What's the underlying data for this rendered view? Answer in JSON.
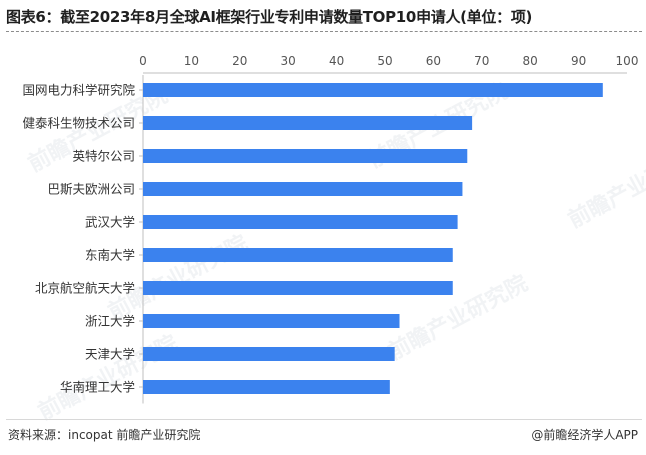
{
  "title": "图表6：截至2023年8月全球AI框架行业专利申请数量TOP10申请人(单位：项)",
  "source": "资料来源：incopat 前瞻产业研究院",
  "credit": "@前瞻经济学人APP",
  "watermark": "前瞻产业研究院",
  "colors": {
    "bar": "#3b82ee",
    "text": "#333333",
    "axis": "#555555"
  },
  "chart_data": {
    "type": "bar",
    "orientation": "horizontal",
    "title": "图表6：截至2023年8月全球AI框架行业专利申请数量TOP10申请人(单位：项)",
    "categories": [
      "国网电力科学研究院",
      "健泰科生物技术公司",
      "英特尔公司",
      "巴斯夫欧洲公司",
      "武汉大学",
      "东南大学",
      "北京航空航天大学",
      "浙江大学",
      "天津大学",
      "华南理工大学"
    ],
    "values": [
      95,
      68,
      67,
      66,
      65,
      64,
      64,
      53,
      52,
      51
    ],
    "xlim": [
      0,
      100
    ],
    "xticks": [
      0,
      10,
      20,
      30,
      40,
      50,
      60,
      70,
      80,
      90,
      100
    ],
    "axis_position": "top",
    "grid": false
  }
}
